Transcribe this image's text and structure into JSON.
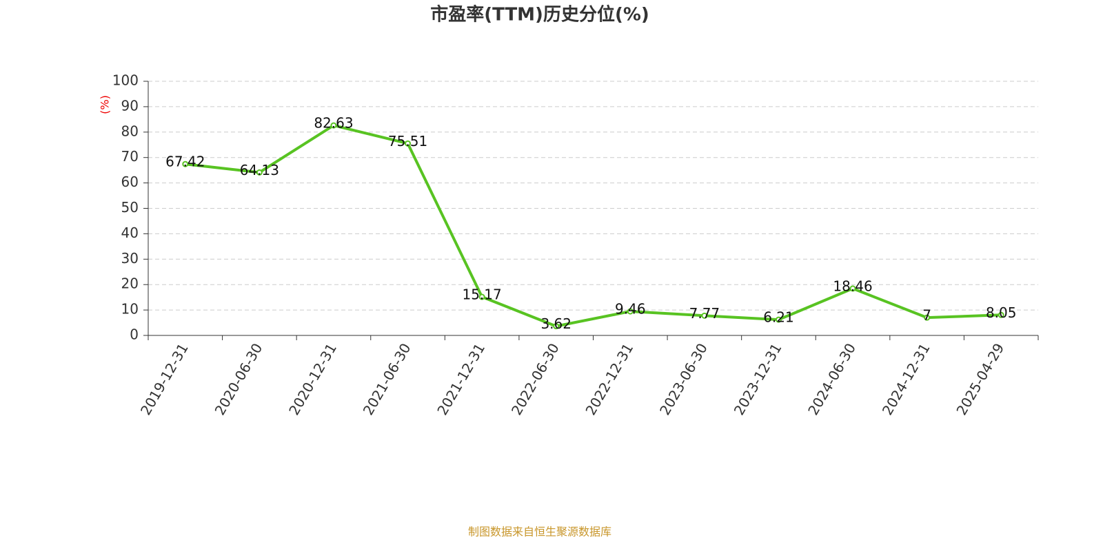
{
  "chart_data": {
    "type": "line",
    "title": "市盈率(TTM)历史分位(%)",
    "y_label": "(%)",
    "source": "制图数据来自恒生聚源数据库",
    "categories": [
      "2019-12-31",
      "2020-06-30",
      "2020-12-31",
      "2021-06-30",
      "2021-12-31",
      "2022-06-30",
      "2022-12-31",
      "2023-06-30",
      "2023-12-31",
      "2024-06-30",
      "2024-12-31",
      "2025-04-29"
    ],
    "values": [
      67.42,
      64.13,
      82.63,
      75.51,
      15.17,
      3.62,
      9.46,
      7.77,
      6.21,
      18.46,
      7,
      8.05
    ],
    "color": "#58c322",
    "ylim": [
      0,
      100
    ],
    "yticks": [
      0,
      10,
      20,
      30,
      40,
      50,
      60,
      70,
      80,
      90,
      100
    ],
    "grid": true
  }
}
